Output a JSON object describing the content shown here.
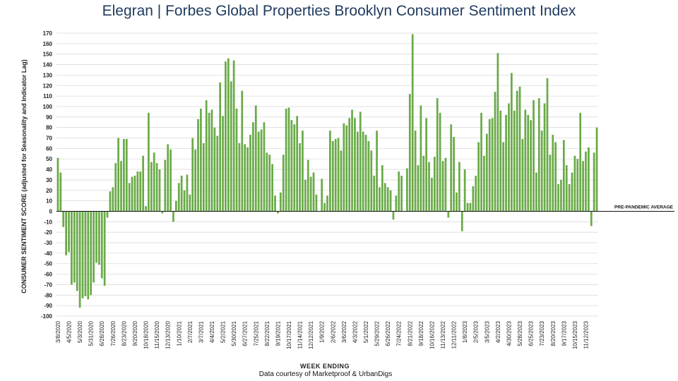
{
  "title": {
    "brand": "Elegran | Forbes Global Properties",
    "subject": "Brooklyn Consumer Sentiment Index"
  },
  "footer": {
    "credit": "Data courtesy of Marketproof & UrbanDigs"
  },
  "chart_data": {
    "type": "bar",
    "xlabel": "WEEK ENDING",
    "ylabel": "CONSUMER SENTIMENT SCORE (adjusted for Seasonality and Indicator Lag)",
    "ylim": [
      -100,
      170
    ],
    "yticks": [
      170,
      160,
      150,
      140,
      130,
      120,
      110,
      100,
      90,
      80,
      70,
      60,
      50,
      40,
      30,
      20,
      10,
      0,
      -10,
      -20,
      -30,
      -40,
      -50,
      -60,
      -70,
      -80,
      -90,
      -100
    ],
    "grid": true,
    "color": "#6aaa48",
    "reference_line": {
      "value": 0,
      "label": "PRE-PANDEMIC AVERAGE"
    },
    "xtick_labels": [
      "3/8/2020",
      "4/5/2020",
      "5/3/2020",
      "5/31/2020",
      "6/28/2020",
      "7/26/2020",
      "8/23/2020",
      "9/20/2020",
      "10/18/2020",
      "11/15/2020",
      "12/13/2020",
      "1/10/2021",
      "2/7/2021",
      "3/7/2021",
      "4/4/2021",
      "5/2/2021",
      "5/30/2021",
      "6/27/2021",
      "7/25/2021",
      "8/22/2021",
      "9/19/2021",
      "10/17/2021",
      "11/14/2021",
      "12/12/2021",
      "1/9/2022",
      "2/6/2022",
      "3/6/2022",
      "4/3/2022",
      "5/1/2022",
      "5/29/2022",
      "6/26/2022",
      "7/24/2022",
      "8/21/2022",
      "9/18/2022",
      "10/16/2022",
      "11/13/2022",
      "12/11/2022",
      "1/8/2023",
      "2/5/2023",
      "3/5/2023",
      "4/2/2023",
      "4/30/2023",
      "5/28/2023",
      "6/25/2023",
      "7/23/2023",
      "8/20/2023",
      "9/17/2023",
      "10/15/2023",
      "11/12/2023"
    ],
    "values": [
      51,
      37,
      -15,
      -42,
      -39,
      -70,
      -68,
      -76,
      -92,
      -83,
      -81,
      -84,
      -80,
      -68,
      -49,
      -51,
      -64,
      -71,
      -6,
      19,
      23,
      46,
      70,
      48,
      69,
      69,
      27,
      33,
      34,
      38,
      38,
      53,
      5,
      94,
      47,
      56,
      46,
      40,
      -2,
      49,
      64,
      59,
      -10,
      10,
      27,
      34,
      20,
      35,
      16,
      70,
      59,
      88,
      98,
      65,
      106,
      94,
      97,
      80,
      72,
      123,
      91,
      143,
      146,
      124,
      144,
      98,
      65,
      115,
      64,
      61,
      73,
      85,
      101,
      76,
      78,
      85,
      56,
      54,
      45,
      15,
      -2,
      18,
      54,
      98,
      99,
      87,
      83,
      91,
      65,
      77,
      30,
      49,
      33,
      37,
      16,
      0,
      31,
      8,
      15,
      77,
      67,
      69,
      70,
      58,
      84,
      82,
      89,
      97,
      89,
      76,
      95,
      76,
      73,
      67,
      58,
      34,
      77,
      23,
      44,
      27,
      23,
      20,
      -8,
      15,
      38,
      34,
      0,
      41,
      112,
      169,
      77,
      44,
      101,
      53,
      89,
      47,
      32,
      52,
      108,
      94,
      48,
      51,
      -6,
      83,
      71,
      18,
      47,
      -19,
      40,
      8,
      8,
      24,
      34,
      66,
      94,
      53,
      74,
      88,
      89,
      114,
      151,
      96,
      66,
      92,
      103,
      132,
      96,
      115,
      119,
      69,
      97,
      92,
      87,
      106,
      37,
      108,
      77,
      103,
      127,
      54,
      73,
      66,
      26,
      30,
      68,
      44,
      26,
      37,
      53,
      50,
      94,
      48,
      57,
      61,
      -14,
      56,
      80
    ]
  }
}
